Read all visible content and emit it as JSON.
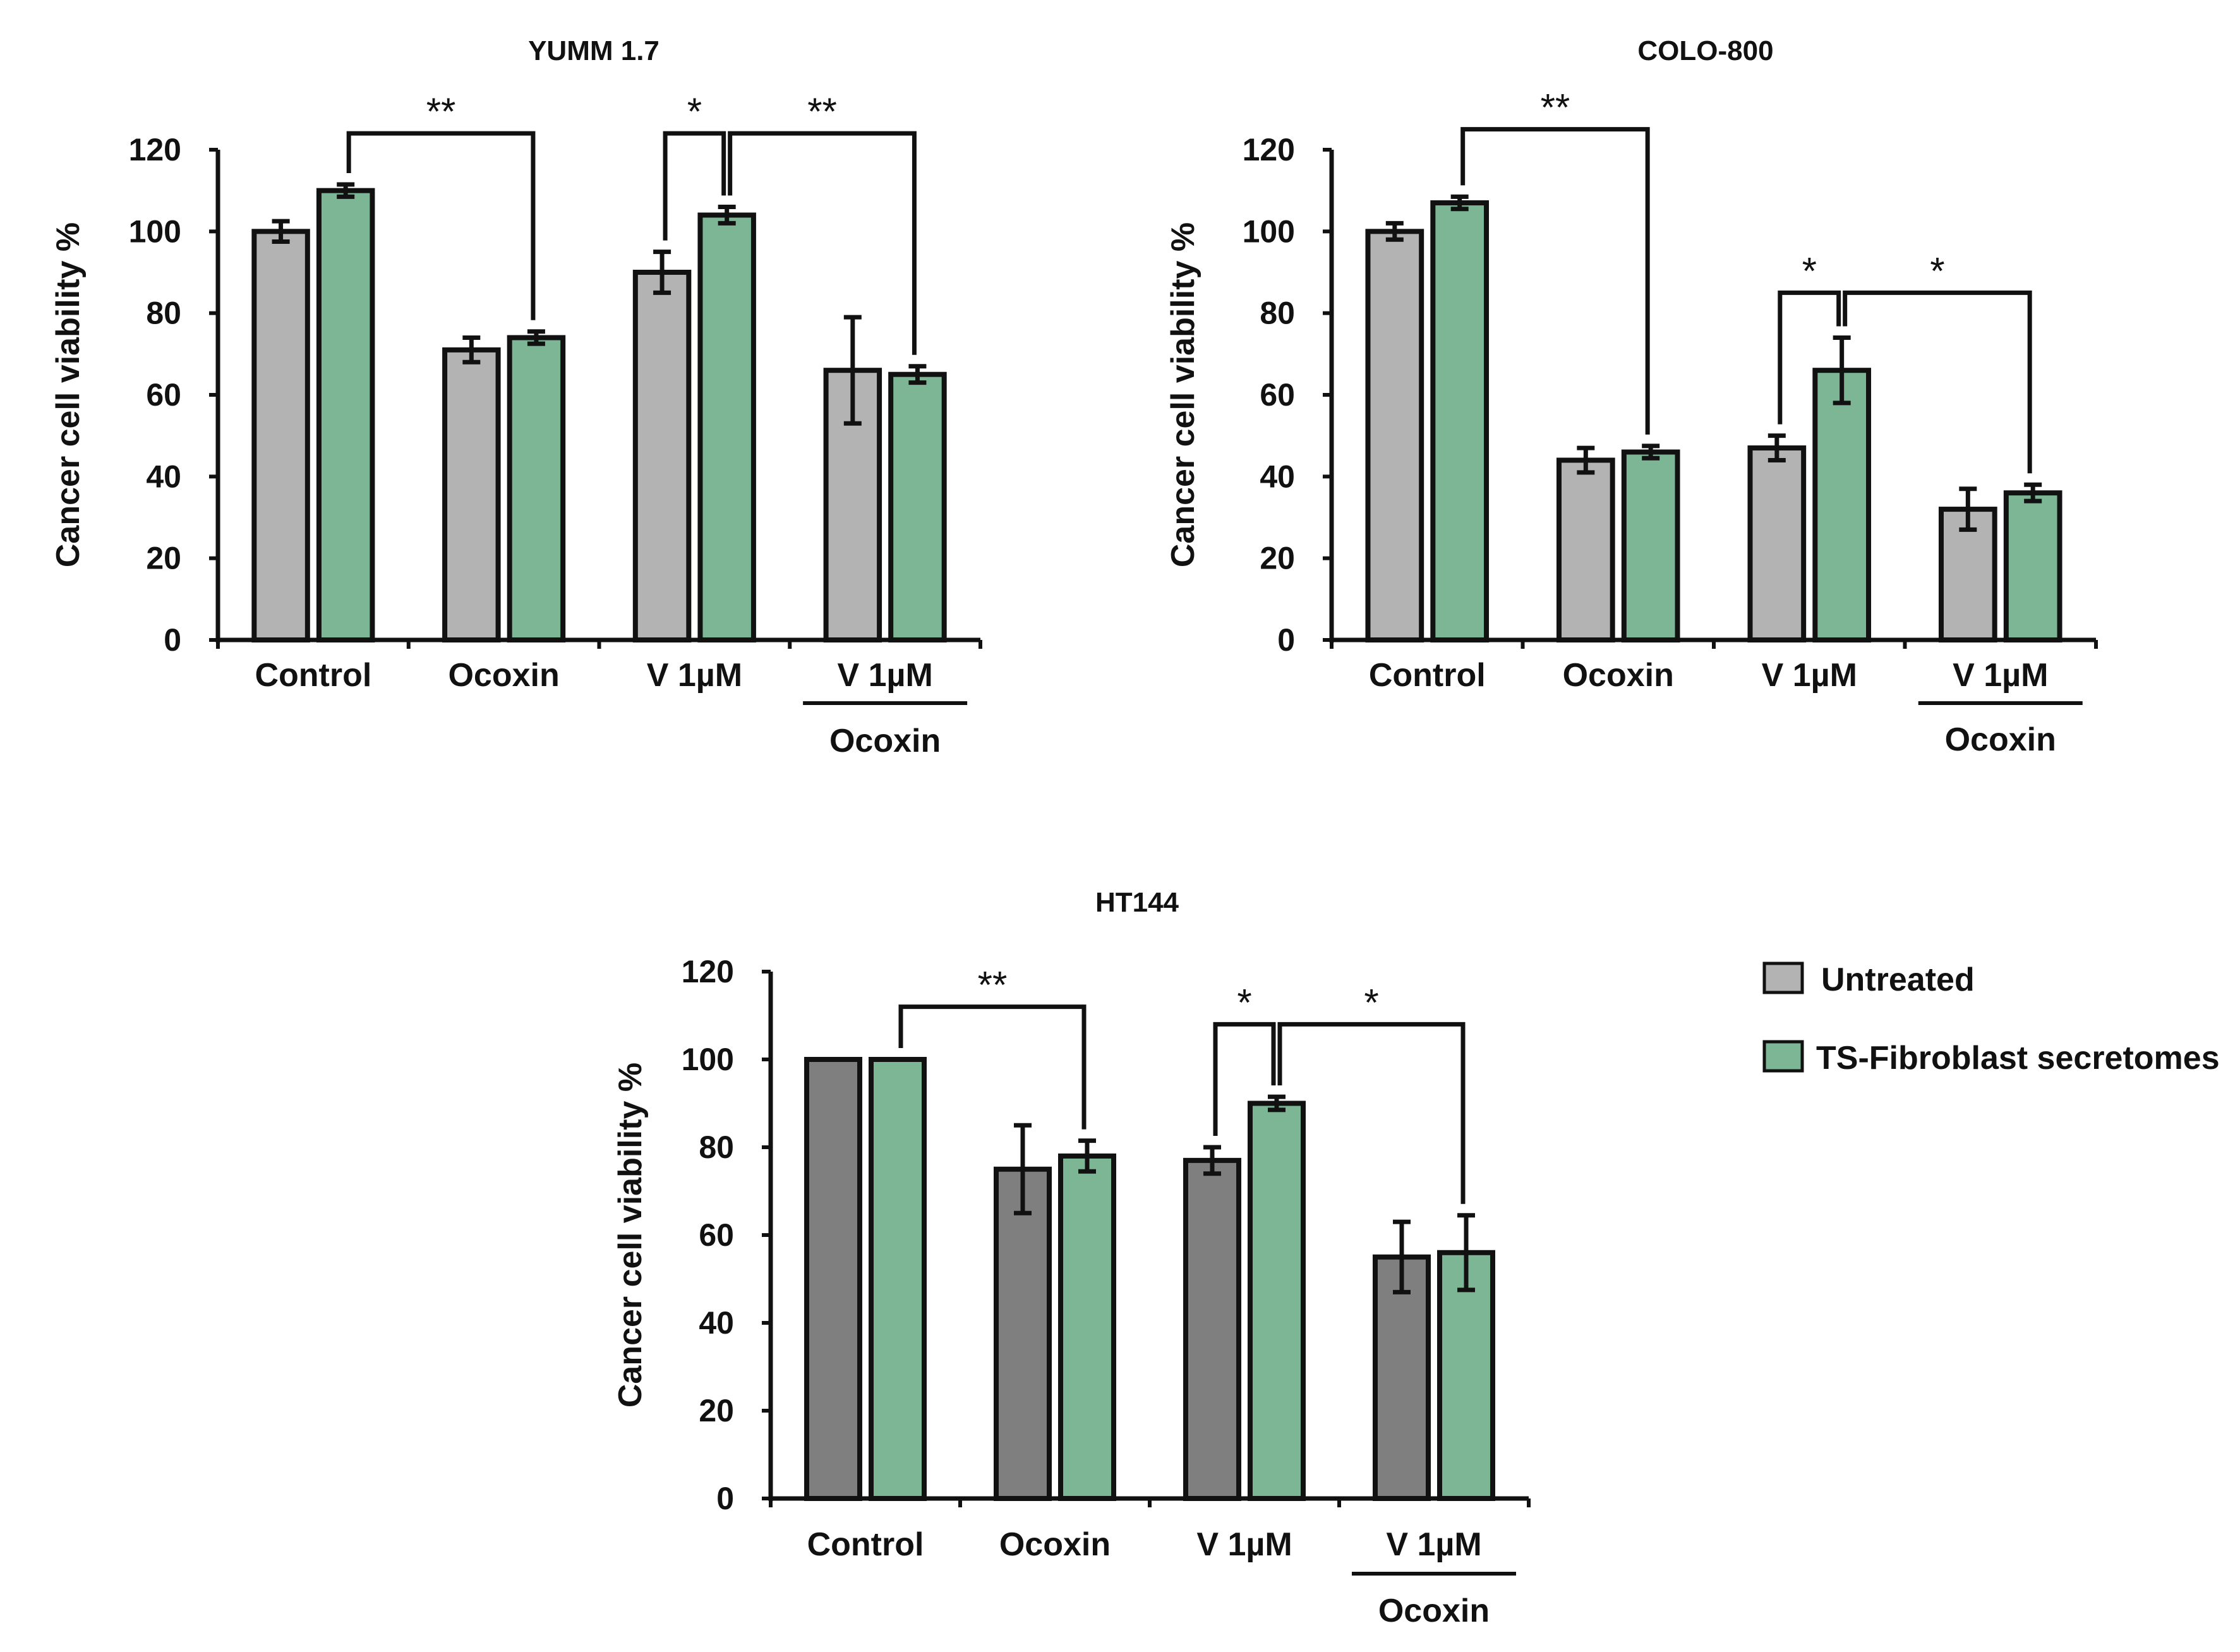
{
  "chart_data": [
    {
      "type": "bar",
      "title": "YUMM 1.7",
      "ylabel": "Cancer cell viability %",
      "xlabel": "",
      "ylim": [
        0,
        120
      ],
      "yticks": [
        0,
        20,
        40,
        60,
        80,
        100,
        120
      ],
      "categories": [
        "Control",
        "Ocoxin",
        "V 1µM",
        "V 1µM"
      ],
      "category_sublabels": [
        "",
        "",
        "",
        "Ocoxin"
      ],
      "series": [
        {
          "name": "Untreated",
          "color": "#b3b3b3",
          "values": [
            100,
            71,
            90,
            66
          ],
          "errors": [
            2.5,
            3,
            5,
            13
          ]
        },
        {
          "name": "TS-Fibroblast secretomes",
          "color": "#7cb695",
          "values": [
            110,
            74,
            104,
            65
          ],
          "errors": [
            1.5,
            1.5,
            2,
            2
          ]
        }
      ],
      "significance": [
        {
          "from": [
            0,
            1
          ],
          "to": [
            1,
            1
          ],
          "label": "**",
          "y": 124
        },
        {
          "from": [
            2,
            0
          ],
          "to": [
            2,
            1
          ],
          "label": "*",
          "y": 124
        },
        {
          "from": [
            2,
            1
          ],
          "to": [
            3,
            1
          ],
          "label": "**",
          "y": 124
        }
      ]
    },
    {
      "type": "bar",
      "title": "COLO-800",
      "ylabel": "Cancer cell viability %",
      "xlabel": "",
      "ylim": [
        0,
        120
      ],
      "yticks": [
        0,
        20,
        40,
        60,
        80,
        100,
        120
      ],
      "categories": [
        "Control",
        "Ocoxin",
        "V 1µM",
        "V 1µM"
      ],
      "category_sublabels": [
        "",
        "",
        "",
        "Ocoxin"
      ],
      "series": [
        {
          "name": "Untreated",
          "color": "#b3b3b3",
          "values": [
            100,
            44,
            47,
            32
          ],
          "errors": [
            2,
            3,
            3,
            5
          ]
        },
        {
          "name": "TS-Fibroblast secretomes",
          "color": "#7cb695",
          "values": [
            107,
            46,
            66,
            36
          ],
          "errors": [
            1.5,
            1.5,
            8,
            2
          ]
        }
      ],
      "significance": [
        {
          "from": [
            0,
            1
          ],
          "to": [
            1,
            1
          ],
          "label": "**",
          "y": 125
        },
        {
          "from": [
            2,
            0
          ],
          "to": [
            2,
            1
          ],
          "label": "*",
          "y": 85
        },
        {
          "from": [
            2,
            1
          ],
          "to": [
            3,
            1
          ],
          "label": "*",
          "y": 85
        }
      ]
    },
    {
      "type": "bar",
      "title": "HT144",
      "ylabel": "Cancer cell viability %",
      "xlabel": "",
      "ylim": [
        0,
        120
      ],
      "yticks": [
        0,
        20,
        40,
        60,
        80,
        100,
        120
      ],
      "categories": [
        "Control",
        "Ocoxin",
        "V 1µM",
        "V 1µM"
      ],
      "category_sublabels": [
        "",
        "",
        "",
        "Ocoxin"
      ],
      "series": [
        {
          "name": "Untreated",
          "color": "#7f7f7f",
          "values": [
            100,
            75,
            77,
            55
          ],
          "errors": [
            0,
            10,
            3,
            8
          ]
        },
        {
          "name": "TS-Fibroblast secretomes",
          "color": "#7cb695",
          "values": [
            100,
            78,
            90,
            56
          ],
          "errors": [
            0,
            3.5,
            1.5,
            8.5
          ]
        }
      ],
      "significance": [
        {
          "from": [
            0,
            1
          ],
          "to": [
            1,
            1
          ],
          "label": "**",
          "y": 112
        },
        {
          "from": [
            2,
            0
          ],
          "to": [
            2,
            1
          ],
          "label": "*",
          "y": 108
        },
        {
          "from": [
            2,
            1
          ],
          "to": [
            3,
            1
          ],
          "label": "*",
          "y": 108
        }
      ]
    }
  ],
  "legend": {
    "items": [
      {
        "label": "Untreated",
        "color": "#b3b3b3"
      },
      {
        "label": "TS-Fibroblast secretomes",
        "color": "#7cb695"
      }
    ],
    "placement": "bottom-right"
  }
}
